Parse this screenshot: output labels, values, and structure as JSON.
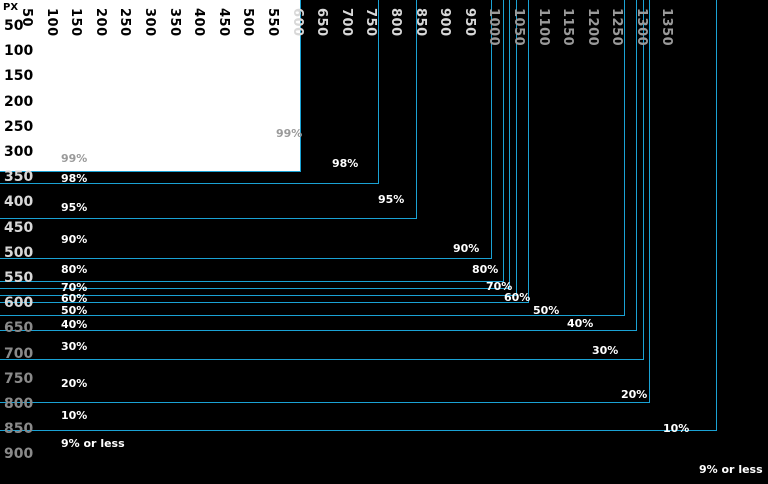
{
  "unit_label": "PX",
  "x_ticks": [
    "50",
    "100",
    "150",
    "200",
    "250",
    "300",
    "350",
    "400",
    "450",
    "500",
    "550",
    "600",
    "650",
    "700",
    "750",
    "800",
    "850",
    "900",
    "950",
    "1000",
    "1050",
    "1100",
    "1150",
    "1200",
    "1250",
    "1300",
    "1350"
  ],
  "y_ticks": [
    "50",
    "100",
    "150",
    "200",
    "250",
    "300",
    "350",
    "400",
    "450",
    "500",
    "550",
    "600",
    "650",
    "700",
    "750",
    "800",
    "850",
    "900"
  ],
  "left_labels": [
    "99%",
    "98%",
    "95%",
    "90%",
    "80%",
    "70%",
    "60%",
    "50%",
    "40%",
    "30%",
    "20%",
    "10%",
    "9% or less"
  ],
  "right_labels": [
    "99%",
    "98%",
    "95%",
    "90%",
    "80%",
    "70%",
    "60%",
    "50%",
    "40%",
    "30%",
    "20%",
    "10%",
    "9% or less"
  ],
  "colors": {
    "background": "#000000",
    "safe_area": "#ffffff",
    "border": "#1aa2d4",
    "text": "#ffffff",
    "faded_text": "#9a9a9a"
  }
}
